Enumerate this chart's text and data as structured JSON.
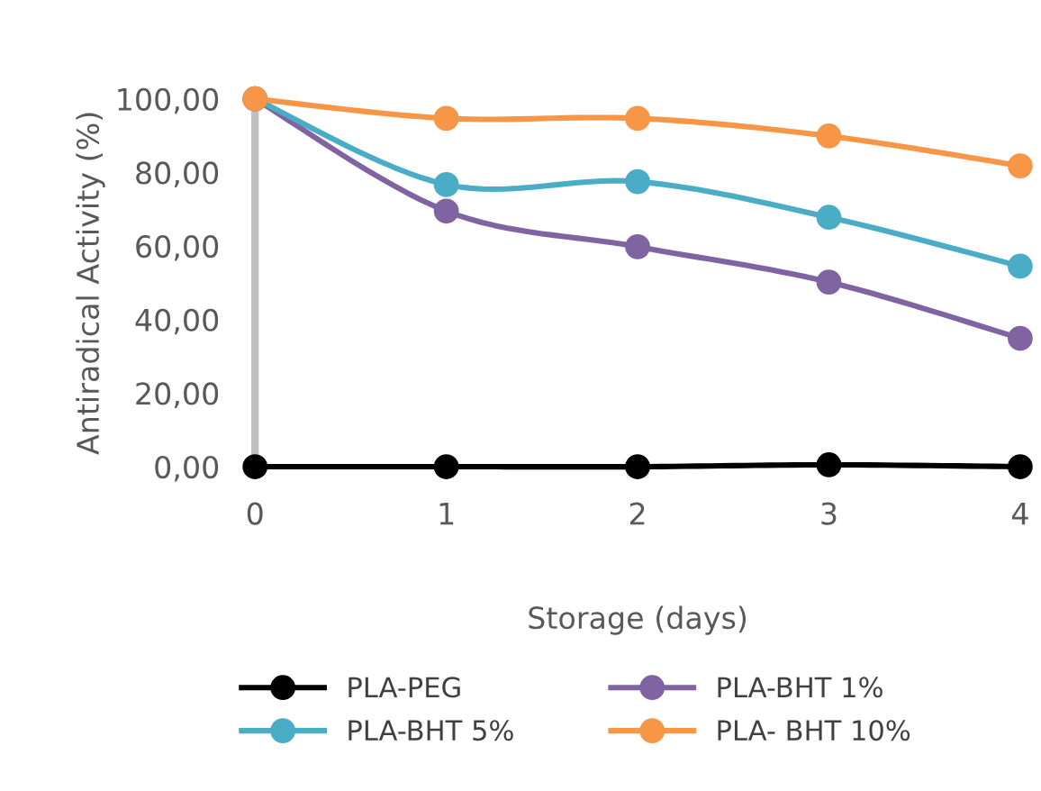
{
  "chart_data": {
    "type": "line",
    "xlabel": "Storage (days)",
    "ylabel": "Antiradical Activity (%)",
    "x": [
      0,
      1,
      2,
      3,
      4
    ],
    "series": [
      {
        "name": "PLA-PEG",
        "color": "#000000",
        "values": [
          0,
          0,
          0,
          0.5,
          0
        ]
      },
      {
        "name": "PLA-BHT 1%",
        "color": "#8064a2",
        "values": [
          100,
          69.5,
          59.8,
          50.2,
          34.9
        ]
      },
      {
        "name": "PLA-BHT 5%",
        "color": "#4bacc6",
        "values": [
          100,
          76.7,
          77.5,
          67.8,
          54.5
        ]
      },
      {
        "name": "PLA- BHT 10%",
        "color": "#f79646",
        "values": [
          100,
          94.7,
          94.7,
          89.9,
          81.8
        ]
      }
    ],
    "xlim": [
      0,
      4
    ],
    "xticks": [
      0,
      1,
      2,
      3,
      4
    ],
    "ylim": [
      0,
      100
    ],
    "yticks": [
      {
        "value": 0,
        "label": "0,00"
      },
      {
        "value": 20,
        "label": "20,00"
      },
      {
        "value": 40,
        "label": "40,00"
      },
      {
        "value": 60,
        "label": "60,00"
      },
      {
        "value": 80,
        "label": "80,00"
      },
      {
        "value": 100,
        "label": "100,00"
      }
    ],
    "grid": false,
    "legend": "bottom",
    "marker": "circle",
    "line_style": "solid"
  }
}
